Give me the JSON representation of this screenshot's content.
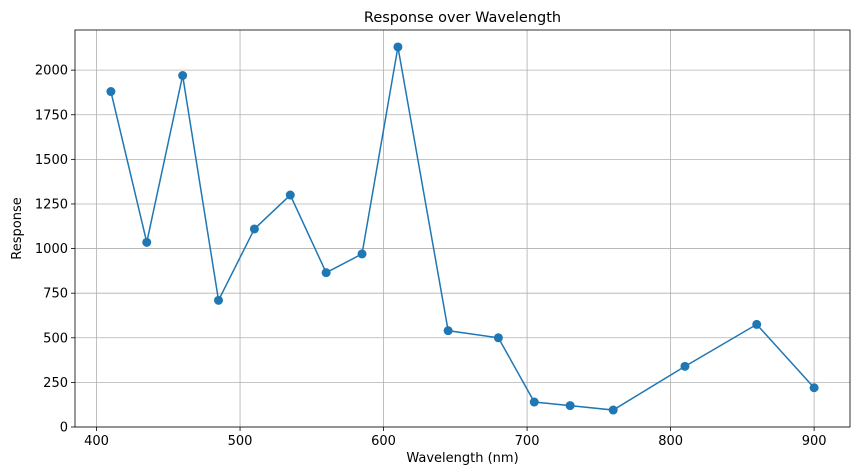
{
  "chart_data": {
    "type": "line",
    "title": "Response over Wavelength",
    "xlabel": "Wavelength (nm)",
    "ylabel": "Response",
    "xlim": [
      385,
      925
    ],
    "ylim": [
      0,
      2225
    ],
    "x_ticks": [
      400,
      500,
      600,
      700,
      800,
      900
    ],
    "y_ticks": [
      0,
      250,
      500,
      750,
      1000,
      1250,
      1500,
      1750,
      2000
    ],
    "grid": true,
    "line_color": "#1f77b4",
    "marker": "circle",
    "series": [
      {
        "x": [
          410,
          435,
          460,
          485,
          510,
          535,
          560,
          585,
          610,
          645,
          680,
          705,
          730,
          760,
          810,
          860,
          900
        ],
        "y": [
          1880,
          1035,
          1970,
          710,
          1110,
          1300,
          865,
          970,
          2130,
          540,
          500,
          140,
          120,
          95,
          340,
          575,
          220
        ]
      }
    ]
  }
}
